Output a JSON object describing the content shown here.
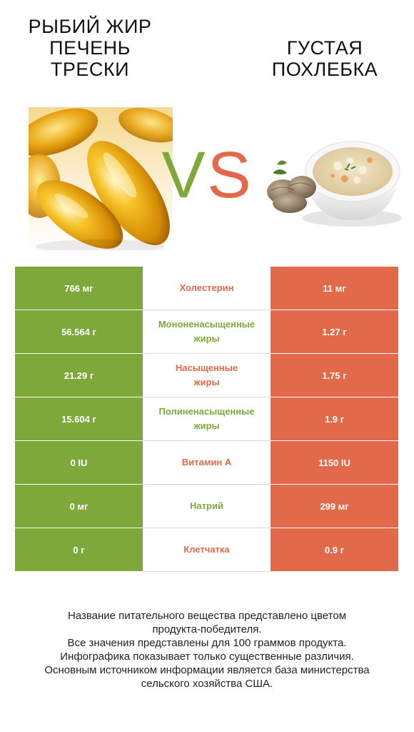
{
  "left_product": {
    "title_lines": [
      "РЫБИЙ ЖИР",
      "ПЕЧЕНЬ",
      "ТРЕСКИ"
    ],
    "color": "#7fa83a",
    "image": "fish-oil-capsules"
  },
  "right_product": {
    "title_lines": [
      "ГУСТАЯ",
      "ПОХЛЕБКА"
    ],
    "color": "#e2694a",
    "image": "clam-chowder-bowl"
  },
  "vs": {
    "v": "V",
    "s": "S"
  },
  "rows": [
    {
      "left": "766 мг",
      "label_lines": [
        "Холестерин"
      ],
      "right": "11 мг",
      "winner": "right"
    },
    {
      "left": "56.564 г",
      "label_lines": [
        "Мононенасыщенные",
        "жиры"
      ],
      "right": "1.27 г",
      "winner": "left"
    },
    {
      "left": "21.29 г",
      "label_lines": [
        "Насыщенные",
        "жиры"
      ],
      "right": "1.75 г",
      "winner": "right"
    },
    {
      "left": "15.604 г",
      "label_lines": [
        "Полиненасыщенные",
        "жиры"
      ],
      "right": "1.9 г",
      "winner": "left"
    },
    {
      "left": "0 IU",
      "label_lines": [
        "Витамин А"
      ],
      "right": "1150 IU",
      "winner": "right"
    },
    {
      "left": "0 мг",
      "label_lines": [
        "Натрий"
      ],
      "right": "299 мг",
      "winner": "left"
    },
    {
      "left": "0 г",
      "label_lines": [
        "Клетчатка"
      ],
      "right": "0.9 г",
      "winner": "right"
    }
  ],
  "footer_lines": [
    "Название питательного вещества представлено цветом",
    "продукта-победителя.",
    "Все значения представлены для 100 граммов продукта.",
    "Инфографика показывает только существенные различия.",
    "Основным источником информации является база министерства",
    "сельского хозяйства США."
  ]
}
